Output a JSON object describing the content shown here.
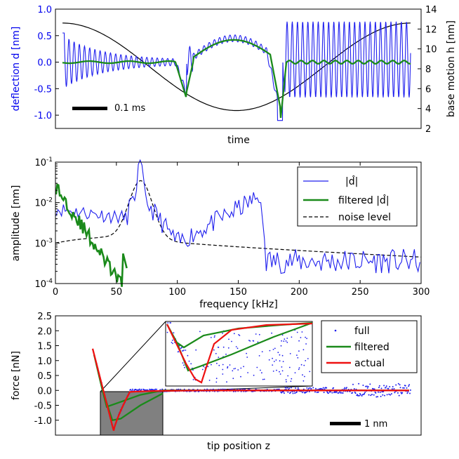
{
  "chart_data": [
    {
      "type": "line",
      "panel": "top",
      "xlabel": "time",
      "ylabel": "deflection d [nm]",
      "ylabel_color": "#0000ee",
      "ylim": [
        -1.25,
        1.0
      ],
      "yticks": [
        "1.0",
        "0.5",
        "0.0",
        "-0.5",
        "-1.0"
      ],
      "ylabel_right": "base motion h [nm]",
      "ylim_right": [
        2,
        14
      ],
      "yticks_right": [
        "14",
        "12",
        "10",
        "8",
        "6",
        "4",
        "2"
      ],
      "scalebar_label": "0.1 ms",
      "series": [
        {
          "role": "deflection",
          "color": "#1f1fee",
          "description_values": "oscillating deflection trace"
        },
        {
          "role": "filtered",
          "color": "#1a8a1a"
        },
        {
          "role": "base_motion",
          "color": "#000000"
        }
      ]
    },
    {
      "type": "line",
      "panel": "middle",
      "xlabel": "frequency  [kHz]",
      "ylabel": "amplitude [nm]",
      "xlim": [
        0,
        300
      ],
      "xticks": [
        "0",
        "50",
        "100",
        "150",
        "200",
        "250",
        "300"
      ],
      "ylim_log10": [
        -4,
        -1
      ],
      "yticks": [
        "10^-1",
        "10^-2",
        "10^-3",
        "10^-4"
      ],
      "yscale": "log",
      "legend_position": "top-right",
      "series": [
        {
          "name": "|d̂|",
          "color": "#1f1fee"
        },
        {
          "name": "filtered |d̂|",
          "color": "#1a8a1a"
        },
        {
          "name": "noise level",
          "color": "#000000",
          "style": "dashed"
        }
      ]
    },
    {
      "type": "scatter",
      "panel": "bottom",
      "xlabel": "tip position z",
      "ylabel": "force  [nN]",
      "ylim": [
        -1.5,
        2.5
      ],
      "yticks": [
        "2.5",
        "2.0",
        "1.5",
        "1.0",
        "0.5",
        "0.0",
        "-0.5",
        "-1.0"
      ],
      "scalebar_label": "1 nm",
      "legend_position": "top-right",
      "series": [
        {
          "name": "full",
          "color": "#1f1fee",
          "style": "dots"
        },
        {
          "name": "filtered",
          "color": "#1a8a1a"
        },
        {
          "name": "actual",
          "color": "#ee1111"
        }
      ]
    }
  ]
}
